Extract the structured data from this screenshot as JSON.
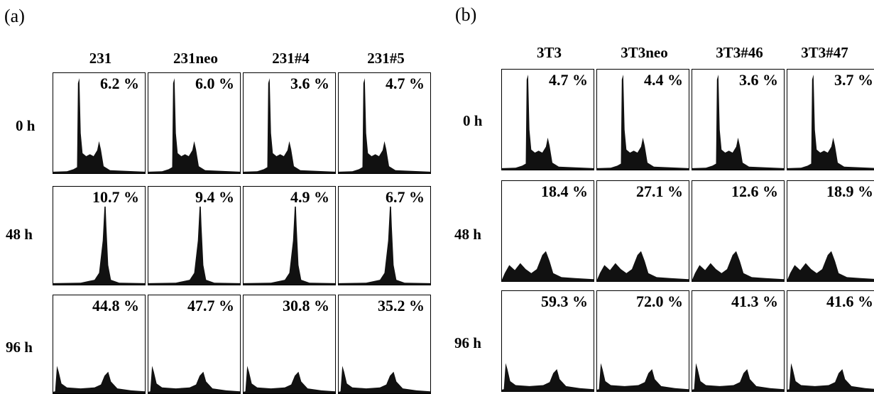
{
  "panels": [
    {
      "label": "(a)",
      "columns": [
        "231",
        "231neo",
        "231#4",
        "231#5"
      ],
      "rows": [
        "0 h",
        "48 h",
        "96 h"
      ],
      "cells": [
        [
          "6.2 %",
          "6.0 %",
          "3.6 %",
          "4.7 %"
        ],
        [
          "10.7 %",
          "9.4 %",
          "4.9 %",
          "6.7 %"
        ],
        [
          "44.8 %",
          "47.7 %",
          "30.8 %",
          "35.2 %"
        ]
      ]
    },
    {
      "label": "(b)",
      "columns": [
        "3T3",
        "3T3neo",
        "3T3#46",
        "3T3#47"
      ],
      "rows": [
        "0 h",
        "48 h",
        "96 h"
      ],
      "cells": [
        [
          "4.7 %",
          "4.4 %",
          "3.6 %",
          "3.7 %"
        ],
        [
          "18.4 %",
          "27.1 %",
          "12.6 %",
          "18.9 %"
        ],
        [
          "59.3 %",
          "72.0 %",
          "41.3 %",
          "41.6 %"
        ]
      ]
    }
  ]
}
